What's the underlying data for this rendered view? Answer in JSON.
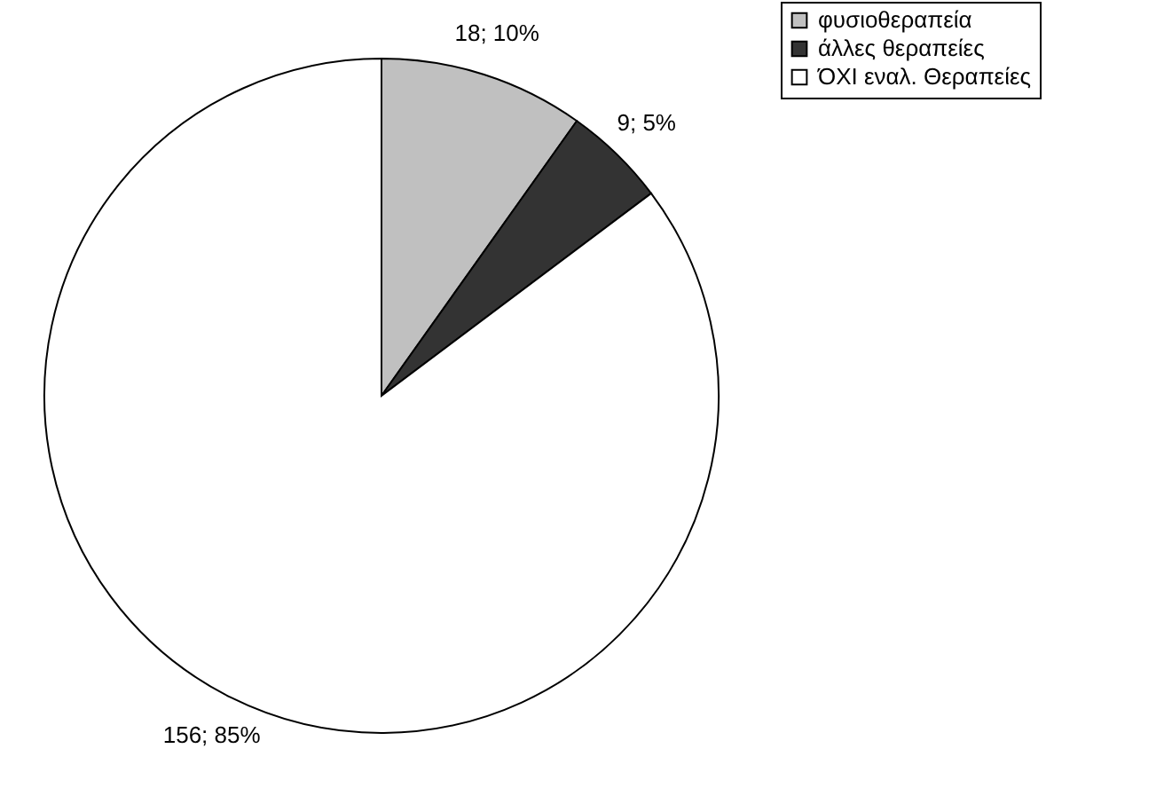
{
  "chart_data": {
    "type": "pie",
    "categories": [
      "φυσιοθεραπεία",
      "άλλες θεραπείες",
      "ΌΧΙ εναλ. Θεραπείες"
    ],
    "values": [
      18,
      9,
      156
    ],
    "colors": [
      "#c0c0c0",
      "#333333",
      "#ffffff"
    ],
    "value_labels": [
      "18; 10%",
      "9; 5%",
      "156; 85%"
    ],
    "legend": "right"
  }
}
